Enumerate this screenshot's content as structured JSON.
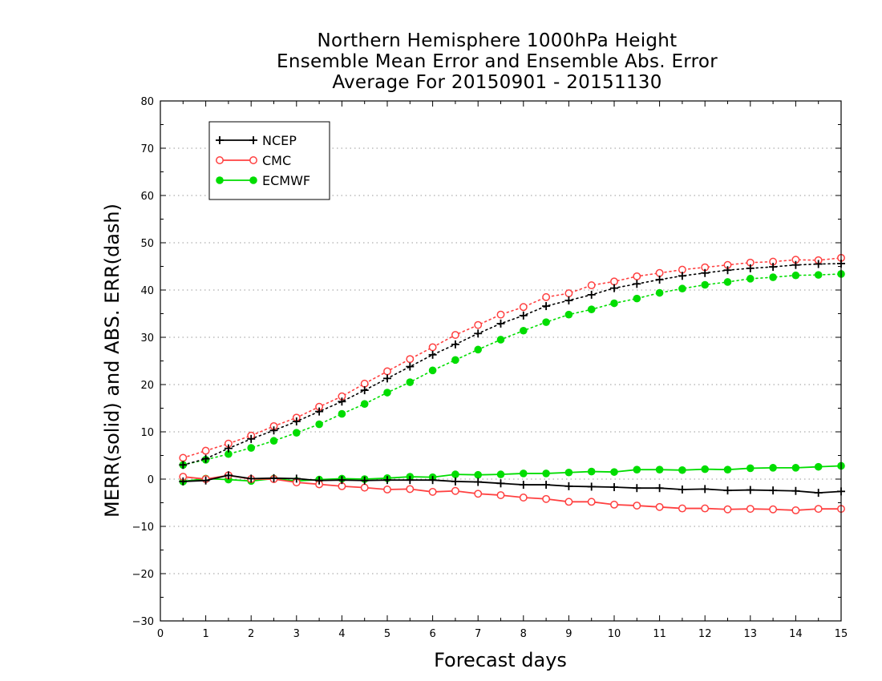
{
  "chart_data": {
    "type": "line",
    "title": [
      "Northern Hemisphere 1000hPa Height",
      "Ensemble Mean Error and Ensemble Abs. Error",
      "Average For 20150901 - 20151130"
    ],
    "xlabel": "Forecast days",
    "ylabel": "MERR(solid) and ABS. ERR(dash)",
    "xlim": [
      0,
      15
    ],
    "ylim": [
      -30,
      80
    ],
    "xticks": [
      0,
      1,
      2,
      3,
      4,
      5,
      6,
      7,
      8,
      9,
      10,
      11,
      12,
      13,
      14,
      15
    ],
    "yticks": [
      -30,
      -20,
      -10,
      0,
      10,
      20,
      30,
      40,
      50,
      60,
      70,
      80
    ],
    "grid": "horizontal dotted",
    "legend_position": "top-left",
    "x": [
      0.5,
      1,
      1.5,
      2,
      2.5,
      3,
      3.5,
      4,
      4.5,
      5,
      5.5,
      6,
      6.5,
      7,
      7.5,
      8,
      8.5,
      9,
      9.5,
      10,
      10.5,
      11,
      11.5,
      12,
      12.5,
      13,
      13.5,
      14,
      14.5,
      15
    ],
    "series": [
      {
        "name": "NCEP",
        "color": "#000000",
        "marker": "plus",
        "mean_error": [
          -0.5,
          -0.3,
          0.8,
          0.1,
          0.2,
          0.1,
          -0.3,
          -0.2,
          -0.3,
          -0.2,
          -0.2,
          -0.2,
          -0.5,
          -0.6,
          -0.9,
          -1.2,
          -1.2,
          -1.5,
          -1.6,
          -1.7,
          -1.9,
          -1.9,
          -2.2,
          -2.1,
          -2.4,
          -2.3,
          -2.4,
          -2.5,
          -2.9,
          -2.6
        ],
        "abs_error": [
          3.0,
          4.3,
          6.5,
          8.5,
          10.3,
          12.2,
          14.3,
          16.4,
          18.8,
          21.3,
          23.8,
          26.3,
          28.5,
          30.8,
          32.9,
          34.6,
          36.6,
          37.8,
          39.0,
          40.4,
          41.3,
          42.2,
          43.0,
          43.6,
          44.2,
          44.6,
          44.9,
          45.3,
          45.5,
          45.6
        ]
      },
      {
        "name": "CMC",
        "color": "#ff4040",
        "marker": "open-circle",
        "mean_error": [
          0.5,
          0.0,
          0.8,
          0.0,
          0.0,
          -0.7,
          -1.1,
          -1.5,
          -1.8,
          -2.2,
          -2.1,
          -2.7,
          -2.5,
          -3.1,
          -3.4,
          -3.9,
          -4.2,
          -4.8,
          -4.8,
          -5.4,
          -5.6,
          -5.9,
          -6.2,
          -6.2,
          -6.4,
          -6.3,
          -6.4,
          -6.6,
          -6.3,
          -6.3
        ],
        "abs_error": [
          4.5,
          6.0,
          7.5,
          9.2,
          11.2,
          13.0,
          15.3,
          17.5,
          20.2,
          22.8,
          25.4,
          27.9,
          30.5,
          32.6,
          34.8,
          36.4,
          38.5,
          39.3,
          41.0,
          41.8,
          42.9,
          43.6,
          44.3,
          44.8,
          45.3,
          45.8,
          46.0,
          46.4,
          46.3,
          46.8
        ]
      },
      {
        "name": "ECMWF",
        "color": "#00dd00",
        "marker": "filled-circle",
        "mean_error": [
          -0.5,
          0.1,
          -0.1,
          -0.4,
          0.1,
          -0.4,
          -0.1,
          0.1,
          0.0,
          0.2,
          0.5,
          0.4,
          1.0,
          0.9,
          1.0,
          1.2,
          1.2,
          1.4,
          1.6,
          1.5,
          2.0,
          2.0,
          1.9,
          2.1,
          2.0,
          2.3,
          2.4,
          2.4,
          2.6,
          2.8
        ],
        "abs_error": [
          3.0,
          4.1,
          5.3,
          6.6,
          8.1,
          9.8,
          11.6,
          13.8,
          15.9,
          18.3,
          20.5,
          23.0,
          25.2,
          27.4,
          29.5,
          31.4,
          33.2,
          34.8,
          35.9,
          37.2,
          38.2,
          39.4,
          40.3,
          41.1,
          41.7,
          42.4,
          42.7,
          43.1,
          43.2,
          43.4
        ]
      }
    ]
  }
}
